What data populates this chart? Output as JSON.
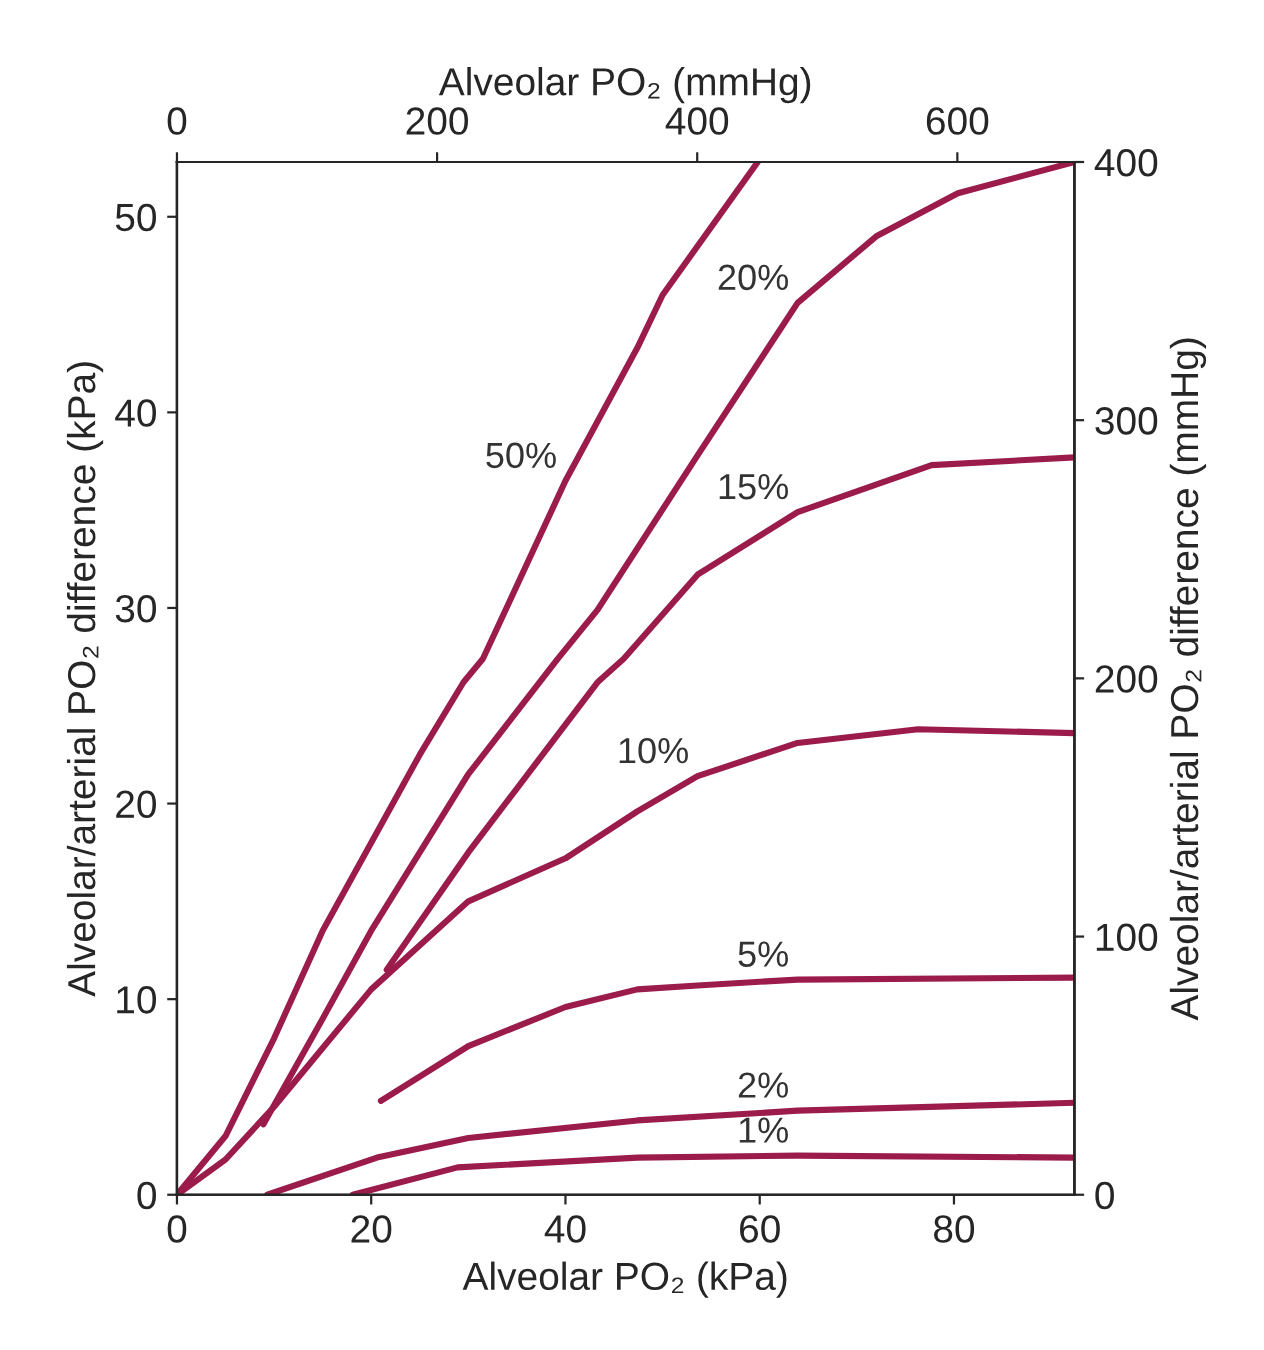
{
  "chart_data": {
    "type": "line",
    "xlabel": "Alveolar PO₂ (kPa)",
    "ylabel": "Alveolar/arterial PO₂ difference (kPa)",
    "x2label": "Alveolar PO₂ (mmHg)",
    "y2label": "Alveolar/arterial PO₂ difference (mmHg)",
    "xlim": [
      0,
      92.4
    ],
    "xticks": [
      0,
      20,
      40,
      60,
      80
    ],
    "ylim": [
      0,
      52.8
    ],
    "yticks": [
      0,
      10,
      20,
      30,
      40,
      50
    ],
    "x2lim": [
      0,
      690
    ],
    "x2ticks": [
      0,
      200,
      400,
      600
    ],
    "y2lim": [
      0,
      400
    ],
    "y2ticks": [
      0,
      100,
      200,
      300,
      400
    ],
    "grid": false,
    "marker": "none",
    "line_style": "solid",
    "series": [
      {
        "name": "50%",
        "color": "#9b1b4b",
        "x": [
          0,
          5,
          10,
          15,
          20,
          25,
          29.5,
          31.5,
          40,
          47.4,
          50,
          59.8
        ],
        "values": [
          0,
          3,
          8,
          13.5,
          18,
          22.5,
          26.2,
          27.4,
          36.5,
          43.3,
          46,
          52.8
        ]
      },
      {
        "name": "20%",
        "color": "#9b1b4b",
        "x": [
          8.9,
          15,
          20,
          30,
          39.2,
          43.3,
          53.6,
          63.9,
          72,
          80.4,
          92.4
        ],
        "values": [
          3.6,
          9,
          13.5,
          21.5,
          27.4,
          29.9,
          37.8,
          45.6,
          49,
          51.2,
          52.8
        ]
      },
      {
        "name": "15%",
        "color": "#9b1b4b",
        "x": [
          21.6,
          30,
          43.3,
          46,
          53.6,
          63.9,
          77.7,
          92.4
        ],
        "values": [
          11.5,
          17.5,
          26.2,
          27.4,
          31.7,
          34.9,
          37.3,
          37.7
        ]
      },
      {
        "name": "10%",
        "color": "#9b1b4b",
        "x": [
          0,
          5,
          10,
          20,
          30,
          40,
          47.4,
          53.6,
          63.9,
          76.3,
          92.4
        ],
        "values": [
          0,
          1.8,
          4.5,
          10.5,
          15,
          17.2,
          19.6,
          21.4,
          23.1,
          23.8,
          23.6
        ]
      },
      {
        "name": "5%",
        "color": "#9b1b4b",
        "x": [
          21,
          30,
          40,
          47.4,
          53.6,
          63.9,
          92.4
        ],
        "values": [
          4.8,
          7.6,
          9.6,
          10.5,
          10.7,
          11.0,
          11.1
        ]
      },
      {
        "name": "2%",
        "color": "#9b1b4b",
        "x": [
          9.3,
          20.6,
          30,
          47.4,
          63.9,
          92.4
        ],
        "values": [
          0,
          1.9,
          2.9,
          3.8,
          4.3,
          4.7
        ]
      },
      {
        "name": "1%",
        "color": "#9b1b4b",
        "x": [
          18.1,
          28.9,
          47.4,
          63.9,
          92.4
        ],
        "values": [
          0,
          1.4,
          1.9,
          2.0,
          1.9
        ]
      }
    ]
  }
}
